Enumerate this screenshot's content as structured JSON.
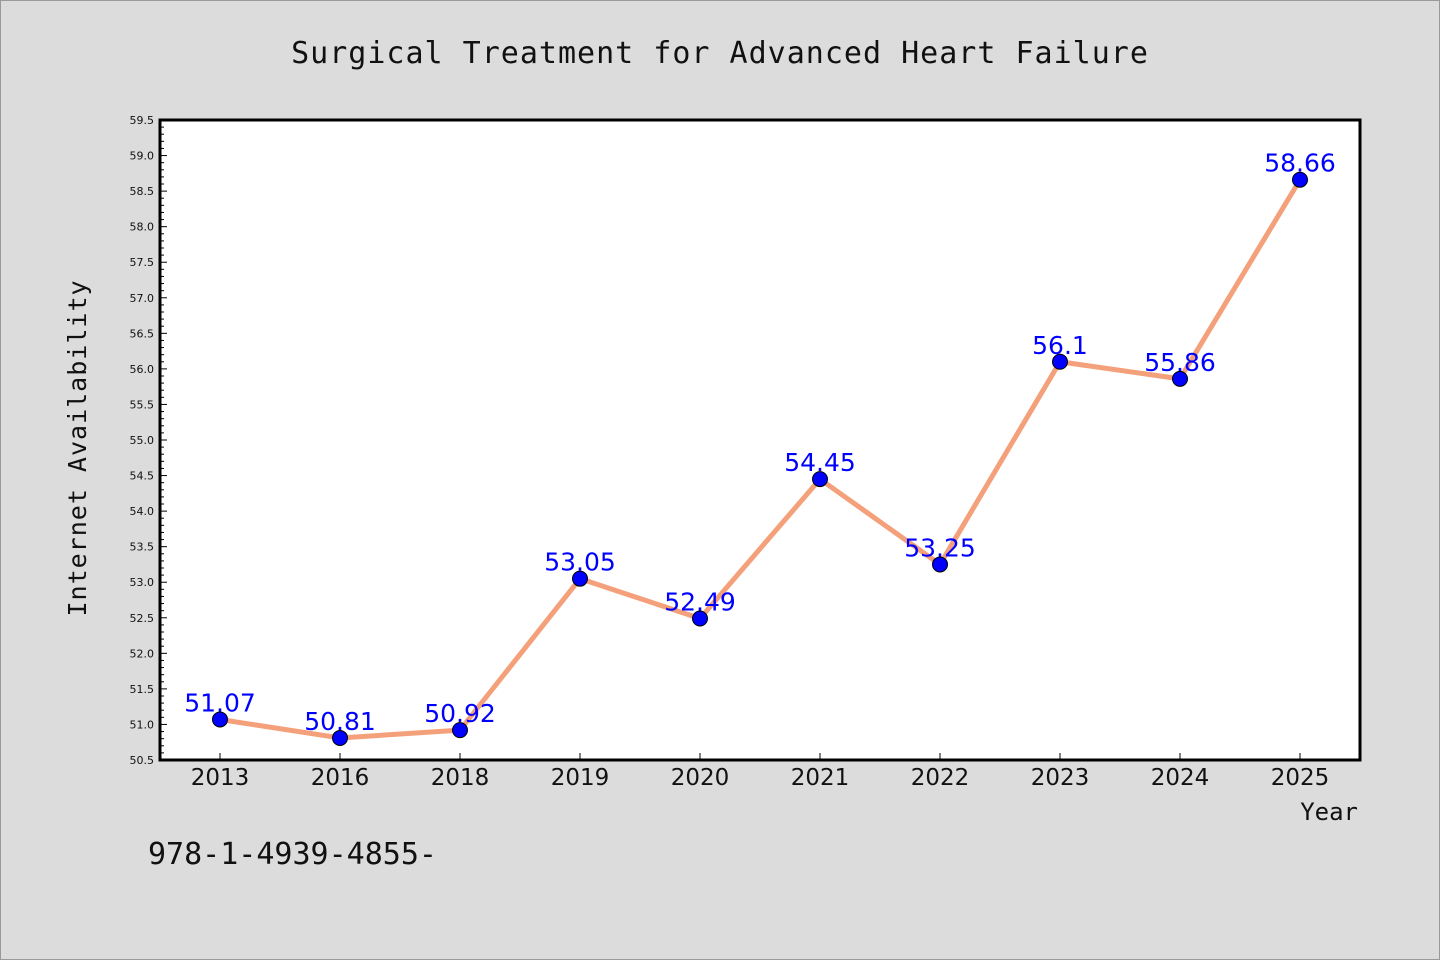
{
  "chart_data": {
    "type": "line",
    "title": "Surgical Treatment for Advanced Heart Failure",
    "xlabel": "Year",
    "ylabel": "Internet Availability",
    "categories": [
      "2013",
      "2016",
      "2018",
      "2019",
      "2020",
      "2021",
      "2022",
      "2023",
      "2024",
      "2025"
    ],
    "values": [
      51.07,
      50.81,
      50.92,
      53.05,
      52.49,
      54.45,
      53.25,
      56.1,
      55.86,
      58.66
    ],
    "data_labels": [
      "51.07",
      "50.81",
      "50.92",
      "53.05",
      "52.49",
      "54.45",
      "53.25",
      "56.1",
      "55.86",
      "58.66"
    ],
    "ylim": [
      50.5,
      59.5
    ],
    "yticks": [
      "50.5",
      "51.0",
      "51.5",
      "52.0",
      "52.5",
      "53.0",
      "53.5",
      "54.0",
      "54.5",
      "55.0",
      "55.5",
      "56.0",
      "56.5",
      "57.0",
      "57.5",
      "58.0",
      "58.5",
      "59.0",
      "59.5"
    ],
    "grid": false,
    "line_color": "#f4a07a",
    "marker_color": "#0000ff",
    "label_color": "#0000ff"
  },
  "footer_text": "978-1-4939-4855-"
}
